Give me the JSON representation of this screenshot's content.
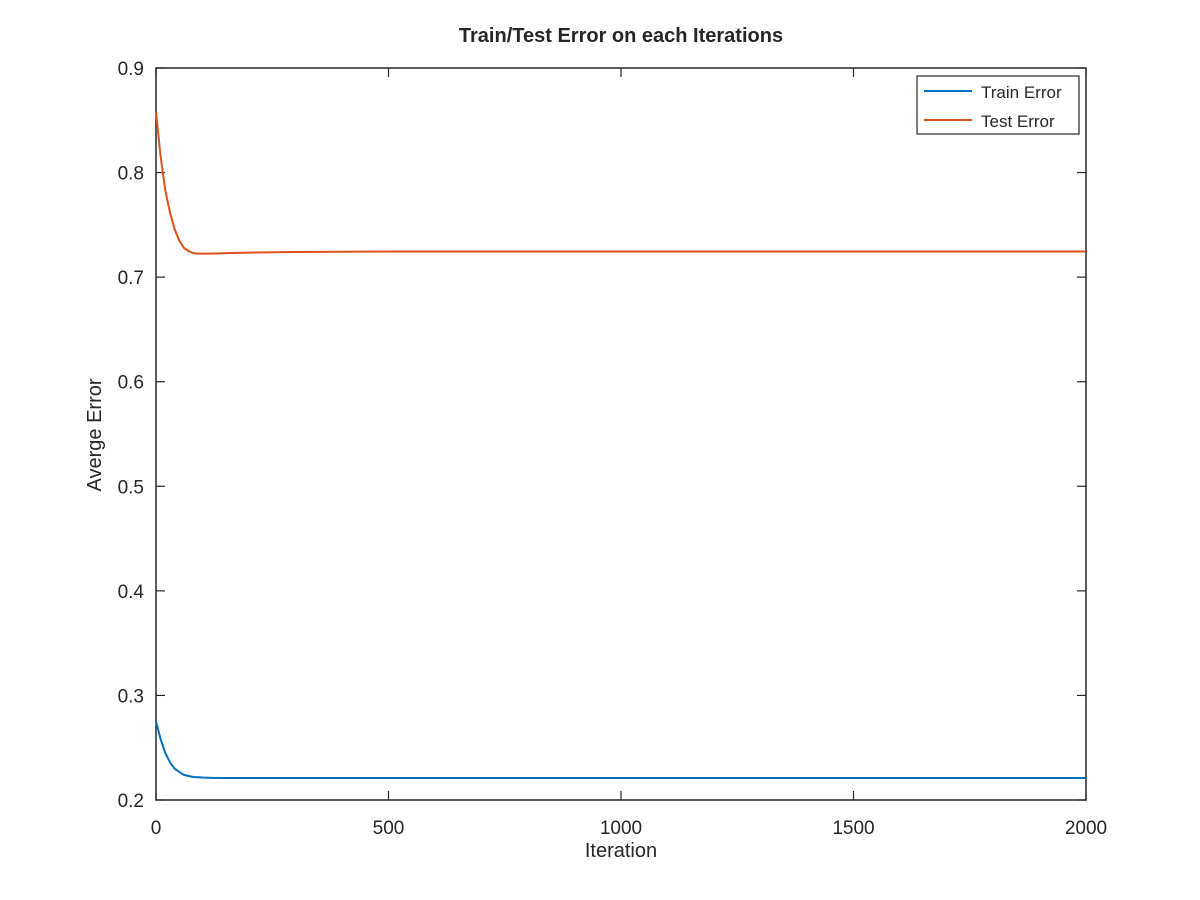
{
  "chart_data": {
    "type": "line",
    "title": "Train/Test Error on each Iterations",
    "xlabel": "Iteration",
    "ylabel": "Averge Error",
    "xlim": [
      0,
      2000
    ],
    "ylim": [
      0.2,
      0.9
    ],
    "xticks": [
      0,
      500,
      1000,
      1500,
      2000
    ],
    "yticks": [
      0.2,
      0.3,
      0.4,
      0.5,
      0.6,
      0.7,
      0.8,
      0.9
    ],
    "xtick_labels": [
      "0",
      "500",
      "1000",
      "1500",
      "2000"
    ],
    "ytick_labels": [
      "0.2",
      "0.3",
      "0.4",
      "0.5",
      "0.6",
      "0.7",
      "0.8",
      "0.9"
    ],
    "grid": false,
    "legend_position": "top-right",
    "series": [
      {
        "name": "Train Error",
        "color": "#0072BD",
        "x": [
          0,
          10,
          20,
          30,
          40,
          50,
          60,
          80,
          100,
          120,
          150,
          200,
          300,
          500,
          1000,
          1500,
          2000
        ],
        "y": [
          0.275,
          0.258,
          0.245,
          0.236,
          0.23,
          0.227,
          0.224,
          0.222,
          0.2215,
          0.2212,
          0.221,
          0.221,
          0.221,
          0.221,
          0.221,
          0.221,
          0.221
        ]
      },
      {
        "name": "Test Error",
        "color": "#D95319",
        "x": [
          0,
          10,
          20,
          30,
          40,
          50,
          60,
          70,
          80,
          90,
          100,
          120,
          150,
          200,
          300,
          500,
          1000,
          1500,
          2000
        ],
        "y": [
          0.858,
          0.815,
          0.783,
          0.762,
          0.746,
          0.735,
          0.728,
          0.725,
          0.723,
          0.7225,
          0.7225,
          0.7225,
          0.723,
          0.7235,
          0.724,
          0.7245,
          0.7245,
          0.7245,
          0.7245
        ]
      }
    ]
  }
}
